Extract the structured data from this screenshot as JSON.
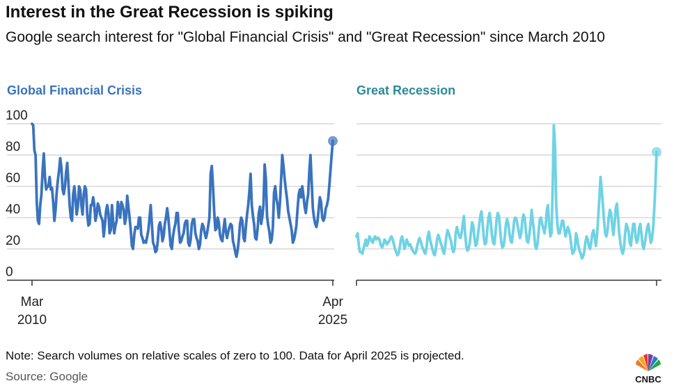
{
  "header": {
    "title": "Interest in the Great Recession is spiking",
    "subtitle": "Google search interest for \"Global Financial Crisis\" and \"Great Recession\" since March 2010"
  },
  "footer": {
    "note": "Note: Search volumes on relative scales of zero to 100. Data for April 2025 is projected.",
    "source": "Source: Google",
    "logo_text": "CNBC"
  },
  "colors": {
    "gfc": "#3a73be",
    "gr": "#6fd3e4",
    "grid": "#cfcfcf",
    "axis": "#333333"
  },
  "chart_data": [
    {
      "type": "line",
      "title": "Global Financial Crisis",
      "ylim": [
        0,
        100
      ],
      "yticks": [
        "0",
        "20",
        "40",
        "60",
        "80",
        "100"
      ],
      "xticks": [
        {
          "line1": "Mar",
          "line2": "2010"
        },
        {
          "line1": "Apr",
          "line2": "2025"
        }
      ],
      "x_start": "2010-03",
      "x_end": "2025-04",
      "grid": true,
      "last_point_projected": true,
      "values": [
        100,
        99,
        83,
        80,
        50,
        38,
        36,
        48,
        55,
        70,
        81,
        66,
        58,
        60,
        60,
        66,
        58,
        59,
        50,
        38,
        45,
        56,
        64,
        70,
        78,
        72,
        58,
        55,
        60,
        69,
        75,
        62,
        48,
        40,
        38,
        55,
        60,
        52,
        42,
        47,
        60,
        58,
        48,
        42,
        55,
        60,
        58,
        42,
        35,
        36,
        48,
        48,
        53,
        48,
        38,
        42,
        49,
        47,
        42,
        40,
        38,
        28,
        35,
        44,
        48,
        43,
        30,
        32,
        48,
        38,
        30,
        35,
        38,
        50,
        46,
        40,
        50,
        48,
        45,
        36,
        40,
        54,
        47,
        40,
        32,
        22,
        20,
        29,
        34,
        34,
        33,
        40,
        40,
        29,
        27,
        24,
        25,
        24,
        28,
        32,
        40,
        48,
        36,
        24,
        22,
        18,
        19,
        25,
        35,
        37,
        33,
        25,
        28,
        36,
        40,
        46,
        40,
        31,
        22,
        20,
        28,
        33,
        36,
        43,
        43,
        32,
        24,
        25,
        28,
        30,
        36,
        38,
        38,
        24,
        22,
        26,
        36,
        39,
        39,
        30,
        27,
        25,
        20,
        23,
        32,
        36,
        34,
        30,
        27,
        30,
        35,
        40,
        68,
        73,
        60,
        44,
        32,
        33,
        40,
        37,
        29,
        26,
        25,
        33,
        39,
        31,
        27,
        31,
        34,
        36,
        35,
        25,
        22,
        18,
        15,
        19,
        26,
        36,
        40,
        38,
        27,
        25,
        34,
        42,
        48,
        57,
        68,
        48,
        41,
        36,
        27,
        26,
        33,
        43,
        47,
        36,
        41,
        48,
        74,
        65,
        41,
        35,
        31,
        24,
        26,
        34,
        56,
        60,
        52,
        48,
        40,
        50,
        65,
        80,
        73,
        65,
        58,
        52,
        44,
        40,
        36,
        32,
        24,
        26,
        30,
        35,
        46,
        55,
        58,
        53,
        60,
        54,
        47,
        43,
        50,
        55,
        70,
        80,
        63,
        46,
        40,
        36,
        34,
        38,
        46,
        53,
        50,
        40,
        38,
        40,
        46,
        48,
        52,
        60,
        70,
        80,
        89
      ]
    },
    {
      "type": "line",
      "title": "Great Recession",
      "ylim": [
        0,
        100
      ],
      "x_start": "2010-03",
      "x_end": "2025-04",
      "grid": true,
      "last_point_projected": true,
      "values": [
        28,
        30,
        22,
        18,
        18,
        17,
        20,
        23,
        26,
        22,
        24,
        28,
        27,
        25,
        24,
        27,
        28,
        26,
        27,
        27,
        25,
        22,
        21,
        23,
        26,
        25,
        23,
        24,
        25,
        27,
        28,
        26,
        23,
        20,
        18,
        16,
        17,
        21,
        26,
        28,
        25,
        20,
        22,
        26,
        24,
        22,
        23,
        21,
        19,
        18,
        17,
        18,
        22,
        25,
        27,
        25,
        22,
        20,
        18,
        17,
        21,
        28,
        31,
        26,
        23,
        20,
        17,
        16,
        20,
        26,
        29,
        27,
        24,
        22,
        19,
        17,
        22,
        28,
        32,
        30,
        27,
        25,
        20,
        18,
        20,
        30,
        34,
        31,
        28,
        27,
        30,
        36,
        41,
        30,
        22,
        19,
        20,
        24,
        31,
        37,
        35,
        27,
        22,
        23,
        29,
        35,
        41,
        44,
        37,
        27,
        23,
        24,
        32,
        40,
        43,
        37,
        29,
        24,
        23,
        30,
        39,
        43,
        41,
        32,
        24,
        21,
        22,
        28,
        36,
        39,
        36,
        30,
        25,
        24,
        30,
        38,
        40,
        39,
        35,
        31,
        27,
        30,
        38,
        42,
        40,
        32,
        25,
        24,
        29,
        36,
        45,
        38,
        31,
        22,
        20,
        23,
        31,
        39,
        40,
        36,
        33,
        30,
        35,
        45,
        48,
        36,
        28,
        30,
        58,
        99,
        86,
        48,
        36,
        30,
        30,
        34,
        38,
        38,
        33,
        28,
        31,
        34,
        32,
        28,
        22,
        17,
        18,
        20,
        30,
        27,
        22,
        19,
        17,
        14,
        15,
        18,
        24,
        28,
        26,
        22,
        20,
        24,
        30,
        32,
        28,
        22,
        29,
        40,
        52,
        66,
        58,
        48,
        38,
        30,
        28,
        32,
        40,
        45,
        43,
        35,
        29,
        36,
        46,
        49,
        40,
        30,
        24,
        19,
        17,
        20,
        29,
        36,
        34,
        31,
        24,
        22,
        30,
        36,
        36,
        28,
        24,
        26,
        33,
        36,
        30,
        22,
        20,
        24,
        29,
        34,
        36,
        30,
        24,
        26,
        33,
        45,
        61,
        82
      ]
    }
  ]
}
